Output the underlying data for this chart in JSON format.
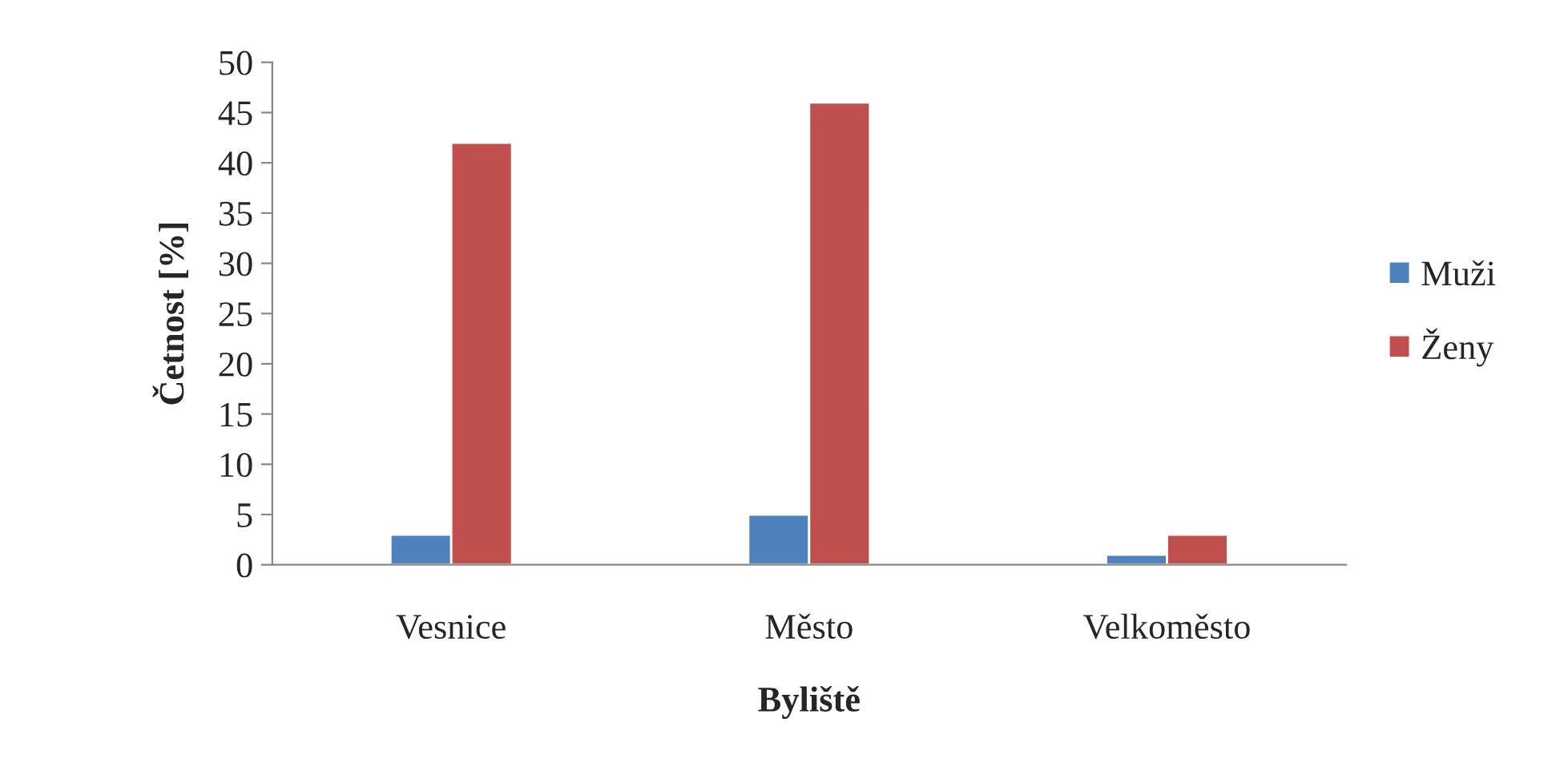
{
  "chart_data": {
    "type": "bar",
    "xlabel": "Byliště",
    "ylabel": "Četnost [%]",
    "categories": [
      "Vesnice",
      "Město",
      "Velkoměsto"
    ],
    "series": [
      {
        "name": "Muži",
        "color": "#4f81bd",
        "values": [
          3,
          5,
          1
        ]
      },
      {
        "name": "Ženy",
        "color": "#c0504d",
        "values": [
          42,
          46,
          3
        ]
      }
    ],
    "ylim": [
      0,
      50
    ],
    "yticks": [
      0,
      5,
      10,
      15,
      20,
      25,
      30,
      35,
      40,
      45,
      50
    ],
    "grid": false,
    "legend": "right"
  }
}
